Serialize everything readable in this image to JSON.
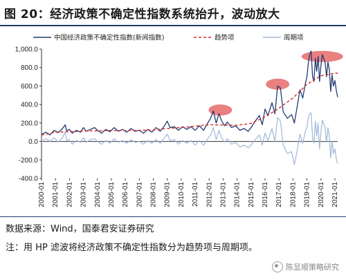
{
  "figure_title": "图 20：经济政策不确定性指数系统抬升，波动放大",
  "source_text": "数据来源：Wind，国泰君安证券研究",
  "note_text": "注：用 HP 滤波将经济政策不确定性指数分为趋势项与周期项。",
  "watermark_text": "陈显顺策略研究",
  "colors": {
    "index": "#1f3b6e",
    "trend": "#d62728",
    "cycle": "#9fb8d9",
    "highlight": "#e66a6a",
    "rule": "#1f3b6e"
  },
  "chart_data": {
    "type": "line",
    "title": "",
    "xlabel": "",
    "ylabel": "",
    "ylim": [
      -400,
      1000
    ],
    "yticks": [
      "1,000.0",
      "800.0",
      "600.0",
      "400.0",
      "200.0",
      "0.0",
      "-200.0",
      "-400.0"
    ],
    "ytick_values": [
      1000,
      800,
      600,
      400,
      200,
      0,
      -200,
      -400
    ],
    "xticks": [
      "2000-01",
      "2001-01",
      "2002-01",
      "2003-01",
      "2004-01",
      "2005-01",
      "2006-01",
      "2007-01",
      "2008-01",
      "2009-01",
      "2010-01",
      "2011-01",
      "2012-01",
      "2013-01",
      "2014-01",
      "2015-01",
      "2016-01",
      "2017-01",
      "2018-01",
      "2019-01",
      "2020-01",
      "2021-01"
    ],
    "xlim": [
      2000.0,
      2021.2
    ],
    "legend_position": "top",
    "grid": false,
    "series": [
      {
        "name": "中国经济政策不确定性指数(新闻指数)",
        "style": "solid",
        "points": [
          [
            2000.0,
            75
          ],
          [
            2000.3,
            100
          ],
          [
            2000.6,
            70
          ],
          [
            2000.9,
            120
          ],
          [
            2001.2,
            95
          ],
          [
            2001.5,
            140
          ],
          [
            2001.7,
            180
          ],
          [
            2001.8,
            115
          ],
          [
            2002.0,
            130
          ],
          [
            2002.2,
            90
          ],
          [
            2002.5,
            120
          ],
          [
            2002.8,
            100
          ],
          [
            2003.0,
            150
          ],
          [
            2003.2,
            110
          ],
          [
            2003.5,
            130
          ],
          [
            2003.8,
            150
          ],
          [
            2004.0,
            120
          ],
          [
            2004.3,
            90
          ],
          [
            2004.6,
            130
          ],
          [
            2004.9,
            105
          ],
          [
            2005.2,
            150
          ],
          [
            2005.5,
            110
          ],
          [
            2005.8,
            130
          ],
          [
            2006.1,
            100
          ],
          [
            2006.4,
            140
          ],
          [
            2006.7,
            110
          ],
          [
            2007.0,
            120
          ],
          [
            2007.3,
            90
          ],
          [
            2007.6,
            130
          ],
          [
            2007.9,
            100
          ],
          [
            2008.2,
            150
          ],
          [
            2008.5,
            110
          ],
          [
            2008.8,
            170
          ],
          [
            2009.0,
            220
          ],
          [
            2009.2,
            150
          ],
          [
            2009.5,
            160
          ],
          [
            2009.8,
            120
          ],
          [
            2010.1,
            160
          ],
          [
            2010.4,
            130
          ],
          [
            2010.7,
            160
          ],
          [
            2011.0,
            120
          ],
          [
            2011.3,
            170
          ],
          [
            2011.6,
            120
          ],
          [
            2011.9,
            200
          ],
          [
            2012.1,
            250
          ],
          [
            2012.3,
            330
          ],
          [
            2012.5,
            200
          ],
          [
            2012.7,
            300
          ],
          [
            2012.9,
            220
          ],
          [
            2013.1,
            170
          ],
          [
            2013.3,
            210
          ],
          [
            2013.6,
            150
          ],
          [
            2013.9,
            170
          ],
          [
            2014.2,
            120
          ],
          [
            2014.5,
            140
          ],
          [
            2014.8,
            110
          ],
          [
            2015.0,
            150
          ],
          [
            2015.3,
            220
          ],
          [
            2015.6,
            280
          ],
          [
            2015.8,
            180
          ],
          [
            2016.0,
            350
          ],
          [
            2016.2,
            280
          ],
          [
            2016.5,
            420
          ],
          [
            2016.7,
            300
          ],
          [
            2016.9,
            600
          ],
          [
            2017.1,
            580
          ],
          [
            2017.3,
            320
          ],
          [
            2017.6,
            250
          ],
          [
            2017.9,
            290
          ],
          [
            2018.1,
            200
          ],
          [
            2018.3,
            380
          ],
          [
            2018.5,
            560
          ],
          [
            2018.7,
            470
          ],
          [
            2018.9,
            640
          ],
          [
            2019.0,
            700
          ],
          [
            2019.1,
            850
          ],
          [
            2019.2,
            940
          ],
          [
            2019.3,
            980
          ],
          [
            2019.4,
            700
          ],
          [
            2019.5,
            650
          ],
          [
            2019.6,
            900
          ],
          [
            2019.7,
            760
          ],
          [
            2019.8,
            920
          ],
          [
            2019.9,
            650
          ],
          [
            2020.0,
            820
          ],
          [
            2020.1,
            940
          ],
          [
            2020.2,
            900
          ],
          [
            2020.3,
            860
          ],
          [
            2020.4,
            700
          ],
          [
            2020.5,
            860
          ],
          [
            2020.6,
            780
          ],
          [
            2020.7,
            540
          ],
          [
            2020.8,
            720
          ],
          [
            2020.9,
            600
          ],
          [
            2021.0,
            660
          ],
          [
            2021.1,
            550
          ],
          [
            2021.2,
            480
          ]
        ]
      },
      {
        "name": "趋势项",
        "style": "dashed",
        "points": [
          [
            2000.0,
            70
          ],
          [
            2001.0,
            100
          ],
          [
            2002.0,
            105
          ],
          [
            2003.0,
            112
          ],
          [
            2004.0,
            115
          ],
          [
            2005.0,
            118
          ],
          [
            2006.0,
            118
          ],
          [
            2007.0,
            120
          ],
          [
            2008.0,
            125
          ],
          [
            2009.0,
            140
          ],
          [
            2010.0,
            152
          ],
          [
            2011.0,
            165
          ],
          [
            2012.0,
            180
          ],
          [
            2013.0,
            178
          ],
          [
            2014.0,
            175
          ],
          [
            2015.0,
            195
          ],
          [
            2016.0,
            265
          ],
          [
            2017.0,
            360
          ],
          [
            2018.0,
            470
          ],
          [
            2019.0,
            620
          ],
          [
            2020.0,
            710
          ],
          [
            2021.0,
            740
          ],
          [
            2021.2,
            738
          ]
        ]
      },
      {
        "name": "周期项",
        "style": "solid",
        "points": [
          [
            2000.0,
            -5
          ],
          [
            2000.3,
            30
          ],
          [
            2000.6,
            0
          ],
          [
            2000.9,
            40
          ],
          [
            2001.2,
            -10
          ],
          [
            2001.5,
            40
          ],
          [
            2001.7,
            100
          ],
          [
            2001.8,
            10
          ],
          [
            2002.0,
            20
          ],
          [
            2002.2,
            -30
          ],
          [
            2002.5,
            10
          ],
          [
            2002.8,
            -10
          ],
          [
            2003.0,
            40
          ],
          [
            2003.2,
            -10
          ],
          [
            2003.5,
            20
          ],
          [
            2003.8,
            30
          ],
          [
            2004.0,
            0
          ],
          [
            2004.3,
            -30
          ],
          [
            2004.6,
            10
          ],
          [
            2004.9,
            -20
          ],
          [
            2005.2,
            30
          ],
          [
            2005.5,
            -10
          ],
          [
            2005.8,
            10
          ],
          [
            2006.1,
            -20
          ],
          [
            2006.4,
            20
          ],
          [
            2006.7,
            -10
          ],
          [
            2007.0,
            0
          ],
          [
            2007.3,
            -30
          ],
          [
            2007.6,
            10
          ],
          [
            2007.9,
            -20
          ],
          [
            2008.2,
            20
          ],
          [
            2008.5,
            -20
          ],
          [
            2008.8,
            40
          ],
          [
            2009.0,
            80
          ],
          [
            2009.2,
            10
          ],
          [
            2009.5,
            20
          ],
          [
            2009.8,
            -30
          ],
          [
            2010.1,
            10
          ],
          [
            2010.4,
            -20
          ],
          [
            2010.7,
            10
          ],
          [
            2011.0,
            -40
          ],
          [
            2011.3,
            10
          ],
          [
            2011.6,
            -40
          ],
          [
            2011.9,
            30
          ],
          [
            2012.1,
            70
          ],
          [
            2012.3,
            150
          ],
          [
            2012.5,
            20
          ],
          [
            2012.7,
            120
          ],
          [
            2012.9,
            40
          ],
          [
            2013.1,
            -10
          ],
          [
            2013.3,
            30
          ],
          [
            2013.6,
            -30
          ],
          [
            2013.9,
            -10
          ],
          [
            2014.2,
            -60
          ],
          [
            2014.5,
            -40
          ],
          [
            2014.8,
            -70
          ],
          [
            2015.0,
            -40
          ],
          [
            2015.3,
            20
          ],
          [
            2015.6,
            70
          ],
          [
            2015.8,
            -40
          ],
          [
            2016.0,
            90
          ],
          [
            2016.2,
            10
          ],
          [
            2016.5,
            140
          ],
          [
            2016.7,
            0
          ],
          [
            2016.9,
            260
          ],
          [
            2017.1,
            220
          ],
          [
            2017.3,
            -40
          ],
          [
            2017.6,
            -130
          ],
          [
            2017.9,
            -110
          ],
          [
            2018.1,
            -250
          ],
          [
            2018.3,
            -100
          ],
          [
            2018.5,
            80
          ],
          [
            2018.7,
            -20
          ],
          [
            2018.9,
            120
          ],
          [
            2019.0,
            150
          ],
          [
            2019.1,
            260
          ],
          [
            2019.2,
            300
          ],
          [
            2019.3,
            310
          ],
          [
            2019.4,
            40
          ],
          [
            2019.5,
            -20
          ],
          [
            2019.6,
            220
          ],
          [
            2019.7,
            60
          ],
          [
            2019.8,
            200
          ],
          [
            2019.9,
            -80
          ],
          [
            2020.0,
            100
          ],
          [
            2020.1,
            230
          ],
          [
            2020.2,
            190
          ],
          [
            2020.3,
            150
          ],
          [
            2020.4,
            -10
          ],
          [
            2020.5,
            150
          ],
          [
            2020.6,
            60
          ],
          [
            2020.7,
            -180
          ],
          [
            2020.8,
            0
          ],
          [
            2020.9,
            -130
          ],
          [
            2021.0,
            -80
          ],
          [
            2021.1,
            -190
          ],
          [
            2021.2,
            -240
          ]
        ]
      }
    ],
    "highlights": [
      {
        "x": 2012.8,
        "y": 340
      },
      {
        "x": 2016.9,
        "y": 620
      },
      {
        "x": 2020.1,
        "y": 920
      }
    ]
  }
}
